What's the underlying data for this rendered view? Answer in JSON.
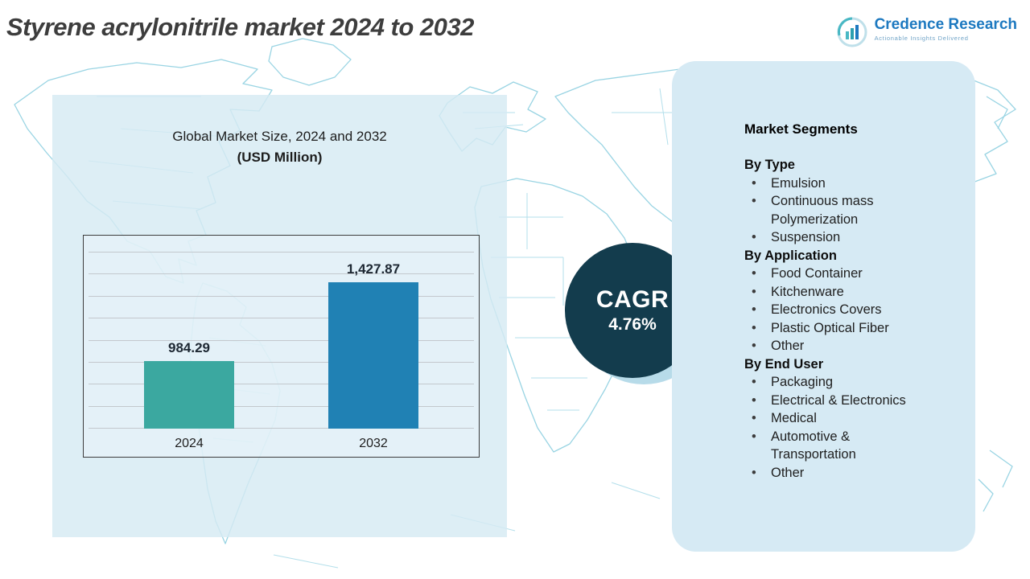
{
  "header": {
    "title": "Styrene acrylonitrile market 2024 to 2032",
    "logo": {
      "brand": "Credence Research",
      "tagline": "Actionable Insights Delivered"
    }
  },
  "chart_data": {
    "type": "bar",
    "title": "Global Market Size, 2024 and 2032",
    "subtitle": "(USD Million)",
    "categories": [
      "2024",
      "2032"
    ],
    "values": [
      984.29,
      1427.87
    ],
    "value_labels": [
      "984.29",
      "1,427.87"
    ],
    "series_name": "Market size (USD Million)",
    "xlabel": "",
    "ylabel": "",
    "ylim": [
      600,
      1600
    ],
    "grid": true,
    "gridline_count": 9,
    "legend": "none",
    "bar_colors": [
      "#3BA8A0",
      "#2081B4"
    ]
  },
  "cagr": {
    "label": "CAGR",
    "value": "4.76%"
  },
  "segments": {
    "heading": "Market Segments",
    "groups": [
      {
        "label": "By Type",
        "items": [
          "Emulsion",
          "Continuous mass Polymerization",
          "Suspension"
        ]
      },
      {
        "label": "By Application",
        "items": [
          "Food Container",
          "Kitchenware",
          "Electronics Covers",
          "Plastic Optical Fiber",
          "Other"
        ]
      },
      {
        "label": "By End User",
        "items": [
          "Packaging",
          "Electrical & Electronics",
          "Medical",
          "Automotive & Transportation",
          "Other"
        ]
      }
    ]
  },
  "colors": {
    "bar_2024": "#3BA8A0",
    "bar_2032": "#2081B4",
    "cagr_circle": "#133C4D",
    "panel_blue": "#D6EAF4",
    "map_line": "#93D2E2",
    "brand_blue": "#1D79C0",
    "title_gray": "#3D3D3D"
  }
}
